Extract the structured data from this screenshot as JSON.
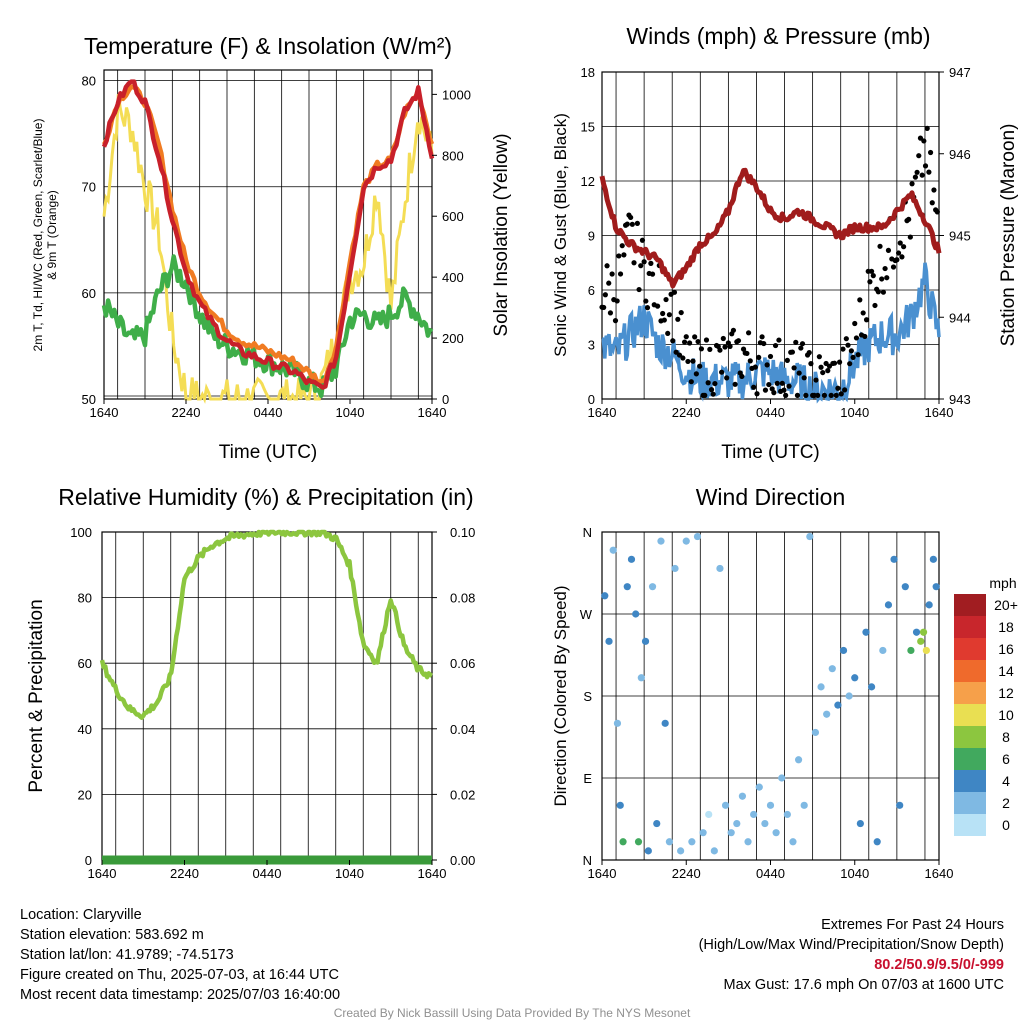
{
  "charts": {
    "temperature": {
      "title": "Temperature (F) & Insolation (W/m²)",
      "ylabel_left": [
        "2m T, Td, HI/WC (Red, Green, Scarlet/Blue)",
        "& 9m T (Orange)"
      ],
      "ylabel_right": "Solar Insolation (Yellow)",
      "xlabel": "Time (UTC)"
    },
    "winds": {
      "title": "Winds (mph) & Pressure (mb)",
      "ylabel_left": "Sonic Wind & Gust (Blue, Black)",
      "ylabel_right": "Station Pressure (Maroon)",
      "xlabel": "Time (UTC)"
    },
    "humidity": {
      "title": "Relative Humidity (%) & Precipitation (in)",
      "ylabel_left": "Percent & Precipitation"
    },
    "direction": {
      "title": "Wind Direction",
      "ylabel_left": "Direction (Colored By Speed)"
    }
  },
  "legend": {
    "title": "mph",
    "labels": [
      "20+",
      "18",
      "16",
      "14",
      "12",
      "10",
      "8",
      "6",
      "4",
      "2",
      "0"
    ],
    "colors": [
      "#a11d21",
      "#c8262c",
      "#e03a2f",
      "#ef6a2c",
      "#f6a04a",
      "#e9df52",
      "#8cc63f",
      "#41a95e",
      "#3f86c4",
      "#7fb9e3",
      "#b8e2f6"
    ]
  },
  "info": {
    "location": "Location: Claryville",
    "elevation": "Station elevation: 583.692 m",
    "latlon": "Station lat/lon: 41.9789; -74.5173",
    "created": "Figure created on Thu, 2025-07-03, at 16:44 UTC",
    "recent": "Most recent data timestamp: 2025/07/03 16:40:00",
    "extremes_title": "Extremes For Past 24 Hours",
    "extremes_sub": "(High/Low/Max Wind/Precipitation/Snow Depth)",
    "extremes_values": "80.2/50.9/9.5/0/-999",
    "max_gust": "Max Gust: 17.6 mph On 07/03 at 1600 UTC",
    "credit": "Created By Nick Bassill Using Data Provided By The NYS Mesonet"
  },
  "colors": {
    "temp": "#c8202a",
    "dewpoint": "#3fae49",
    "nine_m": "#f07b22",
    "insolation": "#f4dd55",
    "wind": "#4a90d0",
    "gust": "#000000",
    "pressure": "#a01c1c",
    "rh": "#8cc63f",
    "precip": "#3a9a3a"
  },
  "chart_data": [
    {
      "type": "line",
      "title": "Temperature (F) & Insolation (W/m²)",
      "xlabel": "Time (UTC)",
      "ylabel": "2m T, Td, HI/WC (Red, Green, Scarlet/Blue) & 9m T (Orange)",
      "y2label": "Solar Insolation (Yellow)",
      "x_ticks": [
        "1640",
        "2240",
        "0440",
        "1040",
        "1640"
      ],
      "ylim": [
        50,
        81
      ],
      "yticks": [
        50,
        60,
        70,
        80
      ],
      "y2lim": [
        0,
        1080
      ],
      "y2ticks": [
        0,
        200,
        400,
        600,
        800,
        1000
      ],
      "x_hours": [
        0,
        1,
        2,
        3,
        4,
        5,
        6,
        7,
        8,
        9,
        10,
        11,
        12,
        13,
        14,
        15,
        16,
        17,
        18,
        19,
        20,
        21,
        22,
        23,
        24
      ],
      "series": [
        {
          "name": "2m T",
          "axis": "left",
          "values": [
            74,
            78,
            80,
            78,
            73,
            67,
            62,
            59,
            57,
            55.5,
            54.5,
            54,
            53.5,
            53,
            52.5,
            51.5,
            51,
            54,
            62,
            70,
            72,
            72.5,
            77,
            79,
            73
          ]
        },
        {
          "name": "9m T",
          "axis": "left",
          "values": [
            74,
            78,
            79.5,
            78,
            74,
            68,
            63,
            60,
            58,
            56.5,
            55.5,
            55,
            54.5,
            54,
            53.5,
            52.5,
            51.5,
            55,
            63,
            70,
            72,
            72.5,
            77,
            79,
            74
          ]
        },
        {
          "name": "Td",
          "axis": "left",
          "values": [
            59,
            57,
            55.5,
            56,
            60,
            62.5,
            61,
            58,
            56,
            55,
            54.5,
            54,
            53.5,
            53,
            52.5,
            51.5,
            51,
            53,
            57.5,
            58,
            57,
            58,
            59.5,
            58,
            56
          ]
        },
        {
          "name": "Insolation",
          "axis": "right",
          "values": [
            600,
            950,
            900,
            700,
            550,
            200,
            20,
            0,
            0,
            0,
            0,
            0,
            0,
            0,
            0,
            0,
            60,
            200,
            400,
            450,
            700,
            300,
            650,
            950,
            800
          ]
        }
      ]
    },
    {
      "type": "line",
      "title": "Winds (mph) & Pressure (mb)",
      "xlabel": "Time (UTC)",
      "ylabel": "Sonic Wind & Gust (Blue, Black)",
      "y2label": "Station Pressure (Maroon)",
      "x_ticks": [
        "1640",
        "2240",
        "0440",
        "1040",
        "1640"
      ],
      "ylim": [
        0,
        18
      ],
      "yticks": [
        0,
        3,
        6,
        9,
        12,
        15,
        18
      ],
      "y2lim": [
        943,
        947
      ],
      "y2ticks": [
        943,
        944,
        945,
        946,
        947
      ],
      "x_hours": [
        0,
        1,
        2,
        3,
        4,
        5,
        6,
        7,
        8,
        9,
        10,
        11,
        12,
        13,
        14,
        15,
        16,
        17,
        18,
        19,
        20,
        21,
        22,
        23,
        24
      ],
      "series": [
        {
          "name": "Sonic Wind",
          "axis": "left",
          "values": [
            3,
            2.5,
            3.5,
            4.5,
            3,
            2.5,
            1.5,
            1,
            1,
            1,
            1,
            1.5,
            1.5,
            1,
            1,
            0.5,
            0.5,
            0.5,
            2,
            3,
            3.5,
            3.5,
            4.5,
            6.5,
            3.5
          ]
        },
        {
          "name": "Gust",
          "axis": "left",
          "values": [
            6,
            6,
            9,
            7,
            6,
            5,
            2,
            1.5,
            2,
            2,
            2.5,
            2,
            2,
            1.5,
            1.5,
            1,
            1,
            1,
            3,
            6,
            7.5,
            9,
            10,
            14,
            9
          ]
        },
        {
          "name": "Station Pressure",
          "axis": "right",
          "values": [
            945.7,
            945.1,
            944.9,
            944.8,
            944.7,
            944.4,
            944.6,
            944.9,
            945.0,
            945.3,
            945.8,
            945.6,
            945.3,
            945.2,
            945.3,
            945.2,
            945.1,
            945.0,
            945.1,
            945.1,
            945.1,
            945.3,
            945.5,
            945.2,
            944.8
          ]
        }
      ]
    },
    {
      "type": "line",
      "title": "Relative Humidity (%) & Precipitation (in)",
      "ylabel": "Percent & Precipitation",
      "x_ticks": [
        "1640",
        "2240",
        "0440",
        "1040",
        "1640"
      ],
      "ylim": [
        0,
        100
      ],
      "yticks": [
        0,
        20,
        40,
        60,
        80,
        100
      ],
      "y2lim": [
        0,
        0.1
      ],
      "y2ticks": [
        "0.00",
        "0.02",
        "0.04",
        "0.06",
        "0.08",
        "0.10"
      ],
      "x_hours": [
        0,
        1,
        2,
        3,
        4,
        5,
        6,
        7,
        8,
        9,
        10,
        11,
        12,
        13,
        14,
        15,
        16,
        17,
        18,
        19,
        20,
        21,
        22,
        23,
        24
      ],
      "series": [
        {
          "name": "Relative Humidity",
          "axis": "left",
          "values": [
            60,
            52,
            46,
            44,
            48,
            56,
            86,
            92,
            96,
            98,
            99,
            99.5,
            100,
            100,
            100,
            100,
            100,
            98,
            90,
            66,
            60,
            80,
            65,
            58,
            56
          ]
        },
        {
          "name": "Precipitation",
          "axis": "right",
          "values": [
            0,
            0,
            0,
            0,
            0,
            0,
            0,
            0,
            0,
            0,
            0,
            0,
            0,
            0,
            0,
            0,
            0,
            0,
            0,
            0,
            0,
            0,
            0,
            0,
            0
          ]
        }
      ]
    },
    {
      "type": "scatter",
      "title": "Wind Direction",
      "ylabel": "Direction (Colored By Speed)",
      "x_ticks": [
        "1640",
        "2240",
        "0440",
        "1040",
        "1640"
      ],
      "y_ticks": [
        "N",
        "E",
        "S",
        "W",
        "N"
      ],
      "ylim": [
        0,
        360
      ],
      "points": [
        {
          "h": 0.2,
          "dir": 290,
          "spd": 3
        },
        {
          "h": 0.5,
          "dir": 240,
          "spd": 3
        },
        {
          "h": 0.8,
          "dir": 340,
          "spd": 2
        },
        {
          "h": 1.1,
          "dir": 150,
          "spd": 1
        },
        {
          "h": 1.3,
          "dir": 60,
          "spd": 4
        },
        {
          "h": 1.5,
          "dir": 20,
          "spd": 5
        },
        {
          "h": 1.8,
          "dir": 300,
          "spd": 4
        },
        {
          "h": 2.1,
          "dir": 330,
          "spd": 3
        },
        {
          "h": 2.4,
          "dir": 270,
          "spd": 3
        },
        {
          "h": 2.6,
          "dir": 20,
          "spd": 6
        },
        {
          "h": 2.8,
          "dir": 200,
          "spd": 2
        },
        {
          "h": 3.1,
          "dir": 240,
          "spd": 4
        },
        {
          "h": 3.3,
          "dir": 10,
          "spd": 3
        },
        {
          "h": 3.6,
          "dir": 300,
          "spd": 2
        },
        {
          "h": 3.9,
          "dir": 40,
          "spd": 3
        },
        {
          "h": 4.2,
          "dir": 350,
          "spd": 1
        },
        {
          "h": 4.5,
          "dir": 150,
          "spd": 3
        },
        {
          "h": 4.8,
          "dir": 20,
          "spd": 2
        },
        {
          "h": 5.2,
          "dir": 320,
          "spd": 2
        },
        {
          "h": 5.6,
          "dir": 10,
          "spd": 1
        },
        {
          "h": 6.0,
          "dir": 350,
          "spd": 1
        },
        {
          "h": 6.4,
          "dir": 20,
          "spd": 2
        },
        {
          "h": 6.8,
          "dir": 355,
          "spd": 1
        },
        {
          "h": 7.2,
          "dir": 30,
          "spd": 1
        },
        {
          "h": 7.6,
          "dir": 50,
          "spd": 0
        },
        {
          "h": 8.0,
          "dir": 10,
          "spd": 1
        },
        {
          "h": 8.4,
          "dir": 320,
          "spd": 1
        },
        {
          "h": 8.8,
          "dir": 60,
          "spd": 1
        },
        {
          "h": 9.2,
          "dir": 30,
          "spd": 2
        },
        {
          "h": 9.6,
          "dir": 40,
          "spd": 1
        },
        {
          "h": 10.0,
          "dir": 70,
          "spd": 1
        },
        {
          "h": 10.4,
          "dir": 20,
          "spd": 2
        },
        {
          "h": 10.8,
          "dir": 50,
          "spd": 1
        },
        {
          "h": 11.2,
          "dir": 80,
          "spd": 1
        },
        {
          "h": 11.6,
          "dir": 40,
          "spd": 2
        },
        {
          "h": 12.0,
          "dir": 60,
          "spd": 1
        },
        {
          "h": 12.4,
          "dir": 30,
          "spd": 1
        },
        {
          "h": 12.8,
          "dir": 90,
          "spd": 1
        },
        {
          "h": 13.2,
          "dir": 50,
          "spd": 2
        },
        {
          "h": 13.6,
          "dir": 20,
          "spd": 1
        },
        {
          "h": 14.0,
          "dir": 110,
          "spd": 1
        },
        {
          "h": 14.4,
          "dir": 60,
          "spd": 2
        },
        {
          "h": 14.8,
          "dir": 355,
          "spd": 1
        },
        {
          "h": 15.2,
          "dir": 140,
          "spd": 2
        },
        {
          "h": 15.6,
          "dir": 190,
          "spd": 2
        },
        {
          "h": 16.0,
          "dir": 160,
          "spd": 2
        },
        {
          "h": 16.4,
          "dir": 210,
          "spd": 2
        },
        {
          "h": 16.8,
          "dir": 170,
          "spd": 3
        },
        {
          "h": 17.2,
          "dir": 230,
          "spd": 3
        },
        {
          "h": 17.6,
          "dir": 180,
          "spd": 2
        },
        {
          "h": 18.0,
          "dir": 200,
          "spd": 4
        },
        {
          "h": 18.4,
          "dir": 40,
          "spd": 4
        },
        {
          "h": 18.8,
          "dir": 250,
          "spd": 3
        },
        {
          "h": 19.2,
          "dir": 190,
          "spd": 3
        },
        {
          "h": 19.6,
          "dir": 20,
          "spd": 4
        },
        {
          "h": 20.0,
          "dir": 230,
          "spd": 2
        },
        {
          "h": 20.4,
          "dir": 280,
          "spd": 4
        },
        {
          "h": 20.8,
          "dir": 330,
          "spd": 4
        },
        {
          "h": 21.2,
          "dir": 60,
          "spd": 4
        },
        {
          "h": 21.6,
          "dir": 300,
          "spd": 3
        },
        {
          "h": 22.0,
          "dir": 230,
          "spd": 5
        },
        {
          "h": 22.4,
          "dir": 250,
          "spd": 4
        },
        {
          "h": 22.7,
          "dir": 240,
          "spd": 7
        },
        {
          "h": 22.9,
          "dir": 250,
          "spd": 8
        },
        {
          "h": 23.1,
          "dir": 230,
          "spd": 9
        },
        {
          "h": 23.3,
          "dir": 280,
          "spd": 4
        },
        {
          "h": 23.6,
          "dir": 330,
          "spd": 4
        },
        {
          "h": 23.8,
          "dir": 300,
          "spd": 3
        }
      ]
    }
  ]
}
